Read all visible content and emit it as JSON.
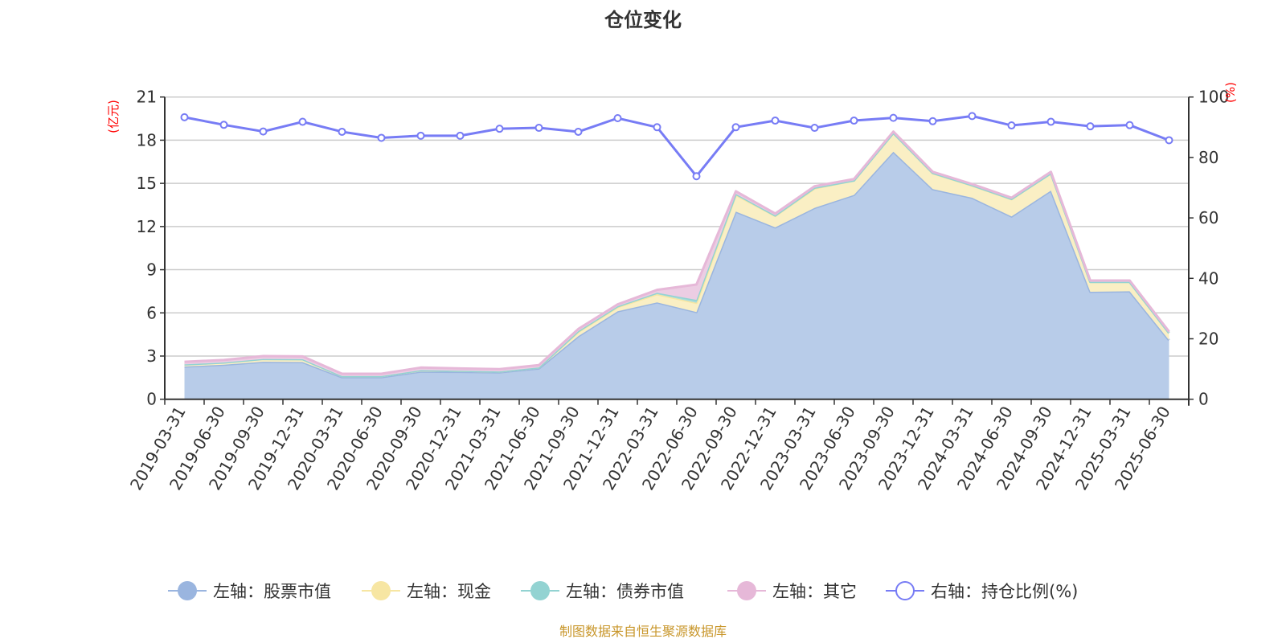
{
  "chart_data": {
    "type": "area",
    "title": "仓位变化",
    "left_axis_unit": "(亿元)",
    "right_axis_unit": "(%)",
    "left_ylim": [
      0,
      21
    ],
    "left_yticks": [
      0,
      3,
      6,
      9,
      12,
      15,
      18,
      21
    ],
    "right_ylim": [
      0,
      100
    ],
    "right_yticks": [
      0,
      20,
      40,
      60,
      80,
      100
    ],
    "grid": true,
    "stacked": true,
    "legend_position": "bottom",
    "categories": [
      "2019-03-31",
      "2019-06-30",
      "2019-09-30",
      "2019-12-31",
      "2020-03-31",
      "2020-06-30",
      "2020-09-30",
      "2020-12-31",
      "2021-03-31",
      "2021-06-30",
      "2021-09-30",
      "2021-12-31",
      "2022-03-31",
      "2022-06-30",
      "2022-09-30",
      "2022-12-31",
      "2023-03-31",
      "2023-06-30",
      "2023-09-30",
      "2023-12-31",
      "2024-03-31",
      "2024-06-30",
      "2024-09-30",
      "2024-12-31",
      "2025-03-31",
      "2025-06-30"
    ],
    "series": [
      {
        "name": "左轴：股票市值",
        "axis": "left",
        "kind": "stacked-area",
        "color": "#9ab5df",
        "fill": "#b8cce9",
        "values": [
          2.27,
          2.4,
          2.6,
          2.58,
          1.53,
          1.53,
          1.92,
          1.9,
          1.87,
          2.14,
          4.38,
          6.11,
          6.73,
          6.06,
          13.04,
          11.94,
          13.3,
          14.2,
          17.2,
          14.6,
          14.0,
          12.7,
          14.5,
          7.47,
          7.5,
          4.1
        ]
      },
      {
        "name": "左轴：现金",
        "axis": "left",
        "kind": "stacked-area",
        "color": "#f7e6a3",
        "fill": "#faefc4",
        "values": [
          0.15,
          0.15,
          0.2,
          0.2,
          0.08,
          0.08,
          0.1,
          0.08,
          0.06,
          0.07,
          0.3,
          0.3,
          0.57,
          0.64,
          1.16,
          0.8,
          1.35,
          1.0,
          1.3,
          1.1,
          0.85,
          1.2,
          1.2,
          0.68,
          0.65,
          0.5
        ]
      },
      {
        "name": "左轴：债券市值",
        "axis": "left",
        "kind": "stacked-area",
        "color": "#93d3d2",
        "fill": "#a9dcdb",
        "values": [
          0,
          0,
          0,
          0,
          0,
          0,
          0,
          0,
          0,
          0,
          0.05,
          0.05,
          0.1,
          0.2,
          0.07,
          0.03,
          0.05,
          0,
          0,
          0.02,
          0.02,
          0.02,
          0,
          0,
          0,
          0
        ]
      },
      {
        "name": "左轴：其它",
        "axis": "left",
        "kind": "stacked-area",
        "color": "#e6b8d8",
        "fill": "#eccde3",
        "values": [
          0.18,
          0.18,
          0.2,
          0.2,
          0.16,
          0.16,
          0.18,
          0.16,
          0.16,
          0.16,
          0.15,
          0.13,
          0.2,
          1.07,
          0.18,
          0.13,
          0.1,
          0.1,
          0.1,
          0.08,
          0.08,
          0.08,
          0.1,
          0.1,
          0.1,
          0.1
        ]
      },
      {
        "name": "右轴：持仓比例(%)",
        "axis": "right",
        "kind": "line",
        "color": "#777cf5",
        "values": [
          93.3,
          90.8,
          88.6,
          91.8,
          88.5,
          86.5,
          87.2,
          87.2,
          89.5,
          89.8,
          88.5,
          93.0,
          90.0,
          73.8,
          90.0,
          92.2,
          89.8,
          92.2,
          93.1,
          92.0,
          93.7,
          90.6,
          91.8,
          90.3,
          90.7,
          85.7
        ]
      }
    ]
  },
  "footer": {
    "source": "制图数据来自恒生聚源数据库",
    "color": "#c8962a"
  },
  "colors": {
    "axis_unit": "#ff0000",
    "text": "#333333",
    "grid": "#cccccc"
  }
}
